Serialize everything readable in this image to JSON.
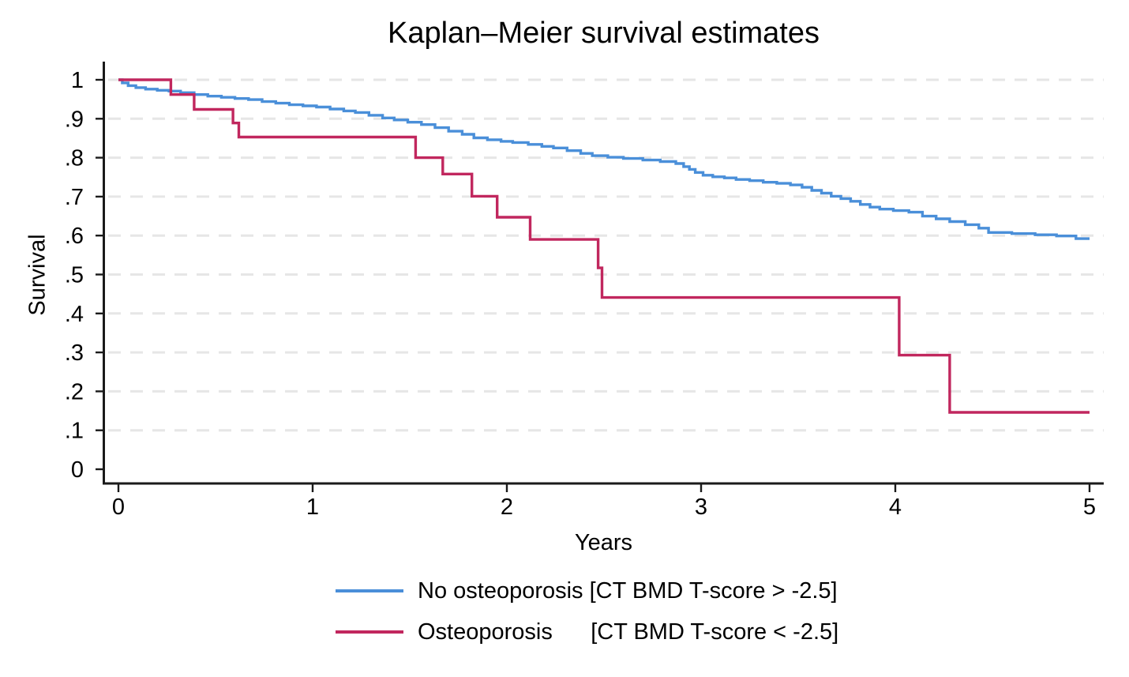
{
  "figure": {
    "title": "Kaplan–Meier survival estimates",
    "x_axis_title": "Years",
    "y_axis_title": "Survival"
  },
  "legend": {
    "position": "below-center",
    "items": [
      {
        "label": "No osteoporosis [CT BMD T-score > -2.5]",
        "color": "#4A8FD9"
      },
      {
        "label": "Osteoporosis      [CT BMD T-score < -2.5]",
        "color": "#C1275E"
      }
    ]
  },
  "chart_data": {
    "type": "line",
    "subtype": "kaplan-meier-step",
    "title": "Kaplan–Meier survival estimates",
    "xlabel": "Years",
    "ylabel": "Survival",
    "xlim": [
      0,
      5
    ],
    "ylim": [
      0,
      1
    ],
    "xticks": [
      0,
      1,
      2,
      3,
      4,
      5
    ],
    "xtick_labels": [
      "0",
      "1",
      "2",
      "3",
      "4",
      "5"
    ],
    "yticks": [
      0,
      0.1,
      0.2,
      0.3,
      0.4,
      0.5,
      0.6,
      0.7,
      0.8,
      0.9,
      1
    ],
    "ytick_labels": [
      "0",
      ".1",
      ".2",
      ".3",
      ".4",
      ".5",
      ".6",
      ".7",
      ".8",
      ".9",
      "1"
    ],
    "grid": "horizontal-dashed",
    "grid_color": "#e6e6e6",
    "axis_color": "#1a1a1a",
    "legend_position": "below",
    "series": [
      {
        "name": "No osteoporosis [CT BMD T-score > -2.5]",
        "color": "#4A8FD9",
        "points": [
          [
            0.0,
            1.0
          ],
          [
            0.02,
            0.992
          ],
          [
            0.05,
            0.985
          ],
          [
            0.09,
            0.98
          ],
          [
            0.14,
            0.976
          ],
          [
            0.2,
            0.973
          ],
          [
            0.26,
            0.971
          ],
          [
            0.32,
            0.967
          ],
          [
            0.39,
            0.962
          ],
          [
            0.46,
            0.958
          ],
          [
            0.53,
            0.955
          ],
          [
            0.6,
            0.952
          ],
          [
            0.67,
            0.949
          ],
          [
            0.74,
            0.944
          ],
          [
            0.81,
            0.94
          ],
          [
            0.88,
            0.936
          ],
          [
            0.95,
            0.933
          ],
          [
            1.02,
            0.93
          ],
          [
            1.09,
            0.925
          ],
          [
            1.16,
            0.92
          ],
          [
            1.22,
            0.916
          ],
          [
            1.29,
            0.909
          ],
          [
            1.36,
            0.902
          ],
          [
            1.42,
            0.897
          ],
          [
            1.49,
            0.891
          ],
          [
            1.56,
            0.885
          ],
          [
            1.63,
            0.877
          ],
          [
            1.7,
            0.868
          ],
          [
            1.77,
            0.86
          ],
          [
            1.83,
            0.851
          ],
          [
            1.9,
            0.846
          ],
          [
            1.97,
            0.842
          ],
          [
            2.03,
            0.839
          ],
          [
            2.11,
            0.834
          ],
          [
            2.18,
            0.829
          ],
          [
            2.24,
            0.825
          ],
          [
            2.31,
            0.818
          ],
          [
            2.38,
            0.811
          ],
          [
            2.44,
            0.805
          ],
          [
            2.52,
            0.801
          ],
          [
            2.6,
            0.798
          ],
          [
            2.7,
            0.794
          ],
          [
            2.79,
            0.79
          ],
          [
            2.87,
            0.785
          ],
          [
            2.91,
            0.777
          ],
          [
            2.94,
            0.77
          ],
          [
            2.97,
            0.762
          ],
          [
            3.01,
            0.755
          ],
          [
            3.06,
            0.751
          ],
          [
            3.12,
            0.748
          ],
          [
            3.18,
            0.744
          ],
          [
            3.25,
            0.741
          ],
          [
            3.32,
            0.737
          ],
          [
            3.39,
            0.734
          ],
          [
            3.46,
            0.73
          ],
          [
            3.52,
            0.724
          ],
          [
            3.57,
            0.716
          ],
          [
            3.62,
            0.709
          ],
          [
            3.67,
            0.701
          ],
          [
            3.72,
            0.695
          ],
          [
            3.77,
            0.688
          ],
          [
            3.82,
            0.68
          ],
          [
            3.87,
            0.673
          ],
          [
            3.92,
            0.668
          ],
          [
            3.99,
            0.664
          ],
          [
            4.07,
            0.66
          ],
          [
            4.14,
            0.65
          ],
          [
            4.21,
            0.643
          ],
          [
            4.28,
            0.636
          ],
          [
            4.36,
            0.628
          ],
          [
            4.43,
            0.619
          ],
          [
            4.48,
            0.608
          ],
          [
            4.6,
            0.605
          ],
          [
            4.72,
            0.602
          ],
          [
            4.83,
            0.599
          ],
          [
            4.93,
            0.592
          ],
          [
            5.0,
            0.592
          ]
        ]
      },
      {
        "name": "Osteoporosis [CT BMD T-score < -2.5]",
        "color": "#C1275E",
        "points": [
          [
            0.0,
            1.0
          ],
          [
            0.27,
            0.962
          ],
          [
            0.39,
            0.924
          ],
          [
            0.59,
            0.889
          ],
          [
            0.62,
            0.853
          ],
          [
            1.53,
            0.8
          ],
          [
            1.67,
            0.758
          ],
          [
            1.82,
            0.701
          ],
          [
            1.95,
            0.647
          ],
          [
            2.12,
            0.59
          ],
          [
            2.47,
            0.517
          ],
          [
            2.49,
            0.441
          ],
          [
            4.02,
            0.293
          ],
          [
            4.28,
            0.146
          ],
          [
            5.0,
            0.146
          ]
        ]
      }
    ]
  }
}
